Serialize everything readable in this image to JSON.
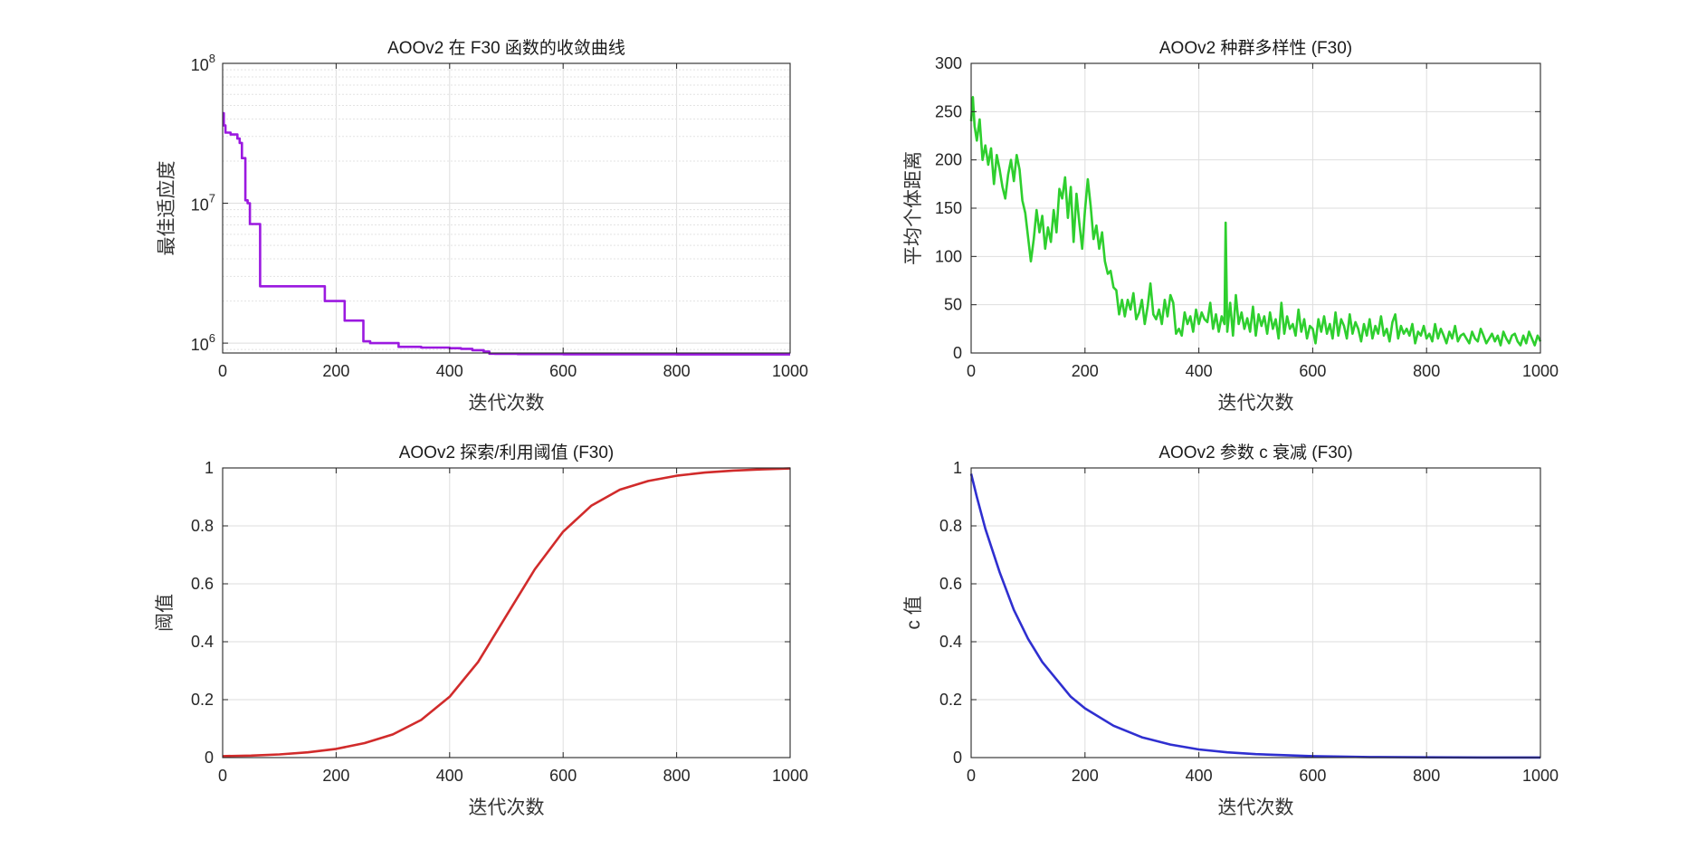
{
  "chart_data": [
    {
      "type": "line",
      "title": "AOOv2 在 F30 函数的收敛曲线",
      "xlabel": "迭代次数",
      "ylabel": "最佳适应度",
      "xlim": [
        0,
        1000
      ],
      "ylim": [
        850000,
        100000000
      ],
      "yscale": "log",
      "grid": true,
      "color": "#9b19e0",
      "step": true,
      "xticks": [
        "0",
        "200",
        "400",
        "600",
        "800",
        "1000"
      ],
      "yticks": [
        {
          "base": "10",
          "exp": "6",
          "value": 1000000
        },
        {
          "base": "10",
          "exp": "7",
          "value": 10000000
        },
        {
          "base": "10",
          "exp": "8",
          "value": 100000000
        }
      ],
      "series": [
        {
          "x": [
            0,
            2,
            5,
            10,
            14,
            26,
            30,
            32,
            34,
            38,
            40,
            44,
            46,
            48,
            50,
            66,
            140,
            180,
            215,
            222,
            248,
            260,
            300,
            310,
            350,
            400,
            420,
            440,
            460,
            470,
            480,
            520,
            600,
            800,
            1000
          ],
          "y": [
            44000000,
            36000000,
            32000000,
            32000000,
            31000000,
            29000000,
            27000000,
            27000000,
            21000000,
            21000000,
            10500000,
            10000000,
            10000000,
            7100000,
            7100000,
            2550000,
            2550000,
            2000000,
            1450000,
            1450000,
            1030000,
            1000000,
            1000000,
            940000,
            930000,
            920000,
            910000,
            890000,
            870000,
            840000,
            838000,
            835000,
            832000,
            830000,
            830000
          ]
        }
      ]
    },
    {
      "type": "line",
      "title": "AOOv2 种群多样性 (F30)",
      "xlabel": "迭代次数",
      "ylabel": "平均个体距离",
      "xlim": [
        0,
        1000
      ],
      "ylim": [
        0,
        300
      ],
      "grid": true,
      "color": "#2ecf2e",
      "xticks": [
        "0",
        "200",
        "400",
        "600",
        "800",
        "1000"
      ],
      "yticks": [
        "0",
        "50",
        "100",
        "150",
        "200",
        "250",
        "300"
      ],
      "series": [
        {
          "x": [
            0,
            3,
            6,
            10,
            15,
            20,
            25,
            30,
            35,
            40,
            45,
            50,
            55,
            60,
            65,
            70,
            75,
            80,
            85,
            90,
            95,
            100,
            105,
            110,
            115,
            120,
            125,
            130,
            135,
            140,
            145,
            150,
            155,
            160,
            165,
            170,
            175,
            180,
            185,
            190,
            195,
            200,
            205,
            210,
            215,
            220,
            225,
            230,
            235,
            240,
            245,
            250,
            255,
            260,
            265,
            270,
            275,
            280,
            285,
            290,
            295,
            300,
            305,
            310,
            315,
            320,
            325,
            330,
            335,
            340,
            345,
            350,
            355,
            360,
            365,
            370,
            375,
            380,
            385,
            390,
            395,
            400,
            405,
            410,
            415,
            420,
            425,
            430,
            435,
            440,
            445,
            447,
            450,
            455,
            460,
            465,
            470,
            475,
            480,
            485,
            490,
            495,
            500,
            505,
            510,
            515,
            520,
            525,
            530,
            535,
            540,
            545,
            550,
            555,
            560,
            565,
            570,
            575,
            580,
            585,
            590,
            595,
            600,
            605,
            610,
            615,
            620,
            625,
            630,
            635,
            640,
            645,
            650,
            655,
            660,
            665,
            670,
            675,
            680,
            685,
            690,
            695,
            700,
            705,
            710,
            715,
            720,
            725,
            730,
            735,
            740,
            745,
            750,
            755,
            760,
            765,
            770,
            775,
            780,
            785,
            790,
            795,
            800,
            805,
            810,
            815,
            820,
            825,
            830,
            835,
            840,
            845,
            850,
            855,
            860,
            865,
            870,
            875,
            880,
            885,
            890,
            895,
            900,
            905,
            910,
            915,
            920,
            925,
            930,
            935,
            940,
            945,
            950,
            955,
            960,
            965,
            970,
            975,
            980,
            985,
            990,
            995,
            1000
          ],
          "y": [
            240,
            265,
            235,
            220,
            242,
            200,
            215,
            195,
            212,
            175,
            205,
            190,
            172,
            160,
            185,
            200,
            178,
            205,
            190,
            158,
            145,
            120,
            95,
            118,
            148,
            125,
            142,
            108,
            130,
            115,
            148,
            125,
            170,
            160,
            182,
            140,
            172,
            115,
            165,
            135,
            108,
            148,
            180,
            152,
            118,
            132,
            108,
            125,
            95,
            82,
            85,
            68,
            65,
            40,
            55,
            38,
            55,
            45,
            62,
            35,
            42,
            55,
            30,
            48,
            72,
            40,
            35,
            45,
            30,
            55,
            38,
            60,
            52,
            20,
            25,
            18,
            42,
            30,
            38,
            22,
            45,
            30,
            42,
            35,
            32,
            52,
            25,
            40,
            22,
            38,
            30,
            135,
            22,
            52,
            18,
            60,
            30,
            42,
            25,
            36,
            22,
            48,
            18,
            40,
            28,
            38,
            20,
            42,
            25,
            35,
            15,
            52,
            20,
            38,
            25,
            30,
            18,
            45,
            22,
            35,
            15,
            28,
            25,
            10,
            35,
            22,
            38,
            20,
            30,
            15,
            42,
            18,
            35,
            28,
            15,
            40,
            20,
            32,
            25,
            12,
            30,
            18,
            35,
            15,
            28,
            20,
            38,
            18,
            25,
            12,
            32,
            40,
            15,
            28,
            20,
            25,
            18,
            30,
            10,
            22,
            18,
            28,
            15,
            20,
            12,
            30,
            15,
            25,
            18,
            10,
            22,
            15,
            28,
            12,
            18,
            20,
            15,
            10,
            22,
            15,
            12,
            25,
            18,
            10,
            15,
            20,
            12,
            18,
            8,
            22,
            15,
            10,
            18,
            20,
            12,
            8,
            18,
            10,
            22,
            15,
            8,
            18,
            12
          ]
        }
      ]
    },
    {
      "type": "line",
      "title": "AOOv2 探索/利用阈值 (F30)",
      "xlabel": "迭代次数",
      "ylabel": "阈值",
      "xlim": [
        0,
        1000
      ],
      "ylim": [
        0,
        1
      ],
      "grid": true,
      "color": "#d12b2b",
      "xticks": [
        "0",
        "200",
        "400",
        "600",
        "800",
        "1000"
      ],
      "yticks": [
        "0",
        "0.2",
        "0.4",
        "0.6",
        "0.8",
        "1"
      ],
      "series": [
        {
          "x": [
            0,
            50,
            100,
            150,
            200,
            250,
            300,
            350,
            400,
            450,
            500,
            550,
            600,
            650,
            700,
            750,
            800,
            850,
            900,
            950,
            1000
          ],
          "y": [
            0.005,
            0.007,
            0.011,
            0.018,
            0.03,
            0.05,
            0.08,
            0.13,
            0.21,
            0.33,
            0.49,
            0.65,
            0.78,
            0.87,
            0.925,
            0.955,
            0.973,
            0.984,
            0.991,
            0.995,
            0.998
          ]
        }
      ]
    },
    {
      "type": "line",
      "title": "AOOv2 参数 c 衰减 (F30)",
      "xlabel": "迭代次数",
      "ylabel": "c 值",
      "xlim": [
        0,
        1000
      ],
      "ylim": [
        0,
        1
      ],
      "grid": true,
      "color": "#2f2fd0",
      "xticks": [
        "0",
        "200",
        "400",
        "600",
        "800",
        "1000"
      ],
      "yticks": [
        "0",
        "0.2",
        "0.4",
        "0.6",
        "0.8",
        "1"
      ],
      "series": [
        {
          "x": [
            0,
            10,
            25,
            50,
            75,
            100,
            125,
            150,
            175,
            200,
            250,
            300,
            350,
            400,
            450,
            500,
            600,
            700,
            800,
            900,
            1000
          ],
          "y": [
            0.98,
            0.9,
            0.79,
            0.64,
            0.51,
            0.41,
            0.33,
            0.27,
            0.21,
            0.17,
            0.11,
            0.07,
            0.045,
            0.028,
            0.018,
            0.012,
            0.005,
            0.002,
            0.001,
            0.0004,
            0.0002
          ]
        }
      ]
    }
  ]
}
